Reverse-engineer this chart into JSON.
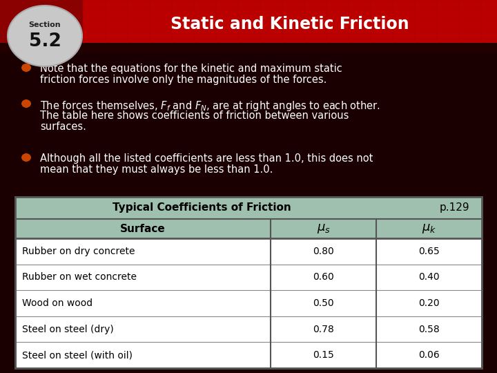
{
  "section_label": "Section",
  "section_number": "5.2",
  "title": "Static and Kinetic Friction",
  "bg_color": "#1a0000",
  "header_bg": "#8b0000",
  "header_main": "#cc0000",
  "section_circle_color": "#c8c8c8",
  "section_circle_edge": "#aaaaaa",
  "bullet_color": "#cc4400",
  "bullet_edge": "#dd5500",
  "text_color": "#ffffff",
  "table_title": "Typical Coefficients of Friction",
  "table_page": "p.129",
  "table_header_bg": "#9fbfaf",
  "table_row_bg": "#ffffff",
  "table_border": "#555555",
  "table_data": [
    [
      "Rubber on dry concrete",
      "0.80",
      "0.65"
    ],
    [
      "Rubber on wet concrete",
      "0.60",
      "0.40"
    ],
    [
      "Wood on wood",
      "0.50",
      "0.20"
    ],
    [
      "Steel on steel (dry)",
      "0.78",
      "0.58"
    ],
    [
      "Steel on steel (with oil)",
      "0.15",
      "0.06"
    ]
  ],
  "bullet1_line1": "Note that the equations for the kinetic and maximum static",
  "bullet1_line2": "friction forces involve only the magnitudes of the forces.",
  "bullet2_line1": "The forces themselves, $\\mathit{F}_f$ and $\\mathit{F}_N$, are at right angles to each other.",
  "bullet2_line2": "The table here shows coefficients of friction between various",
  "bullet2_line3": "surfaces.",
  "bullet3_line1": "Although all the listed coefficients are less than 1.0, this does not",
  "bullet3_line2": "mean that they must always be less than 1.0."
}
